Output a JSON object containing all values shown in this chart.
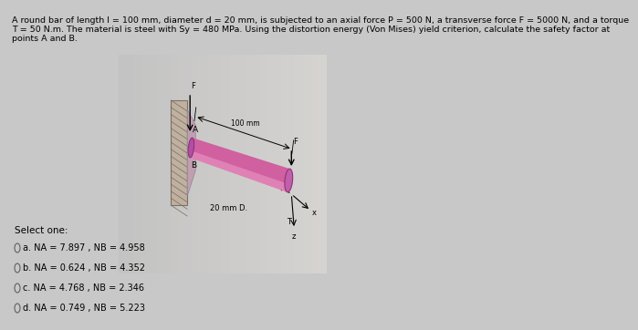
{
  "bg_color": "#c8c8c8",
  "title_line1": "A round bar of length l = 100 mm, diameter d = 20 mm, is subjected to an axial force P = 500 N, a transverse force F = 5000 N, and a torque",
  "title_line2": "T = 50 N.m. The material is steel with Sy = 480 MPa. Using the distortion energy (Von Mises) yield criterion, calculate the safety factor at",
  "title_line3": "points A and B.",
  "title_fontsize": 6.8,
  "select_label": "Select one:",
  "opt_a": "a. NA = 7.897 , NB = 4.958",
  "opt_b": "b. NA = 0.624 , NB = 4.352",
  "opt_c": "c. NA = 4.768 , NB = 2.346",
  "opt_d": "d. NA = 0.749 , NB = 5.223",
  "bar_color": "#d060a0",
  "bar_highlight": "#e890c0",
  "wall_color": "#a09080",
  "flange_color": "#c0a0b0"
}
